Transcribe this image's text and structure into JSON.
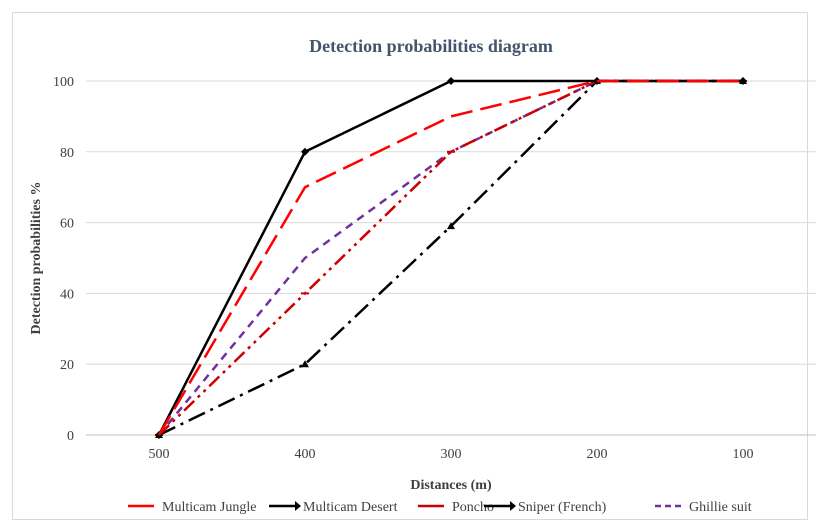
{
  "chart_data": {
    "type": "line",
    "title": "Detection probabilities diagram",
    "xlabel": "Distances (m)",
    "ylabel": "Detection probabilities %",
    "categories": [
      "500",
      "400",
      "300",
      "200",
      "100"
    ],
    "ylim": [
      0,
      100
    ],
    "yticks": [
      0,
      20,
      40,
      60,
      80,
      100
    ],
    "grid": "horizontal",
    "legend": "bottom",
    "series": [
      {
        "name": "Multicam Jungle",
        "values": [
          0,
          70,
          90,
          100,
          100
        ],
        "color": "#ff0000",
        "dash": "long-dash",
        "marker": "none"
      },
      {
        "name": "Multicam Desert",
        "values": [
          0,
          80,
          100,
          100,
          100
        ],
        "color": "#000000",
        "dash": "solid",
        "marker": "diamond"
      },
      {
        "name": "Poncho",
        "values": [
          0,
          40,
          80,
          100,
          100
        ],
        "color": "#cc0000",
        "dash": "long-dash-dot-dot",
        "marker": "dash"
      },
      {
        "name": "Sniper (French)",
        "values": [
          0,
          20,
          59,
          100,
          100
        ],
        "color": "#000000",
        "dash": "long-dash-dot",
        "marker": "triangle"
      },
      {
        "name": "Ghillie suit",
        "values": [
          0,
          50,
          80,
          100,
          100
        ],
        "color": "#7030a0",
        "dash": "dash",
        "marker": "none"
      }
    ]
  }
}
